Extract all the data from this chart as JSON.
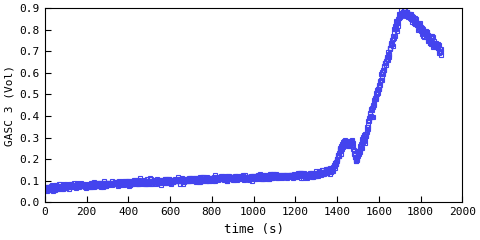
{
  "title": "",
  "xlabel": "time (s)",
  "ylabel": "GASC 3 (Vol)",
  "xlim": [
    0,
    2000
  ],
  "ylim": [
    0,
    0.9
  ],
  "xticks": [
    0,
    200,
    400,
    600,
    800,
    1000,
    1200,
    1400,
    1600,
    1800,
    2000
  ],
  "yticks": [
    0,
    0.1,
    0.2,
    0.3,
    0.4,
    0.5,
    0.6,
    0.7,
    0.8,
    0.9
  ],
  "line_color": "#4444ee",
  "background_color": "#ffffff",
  "font": "monospace"
}
